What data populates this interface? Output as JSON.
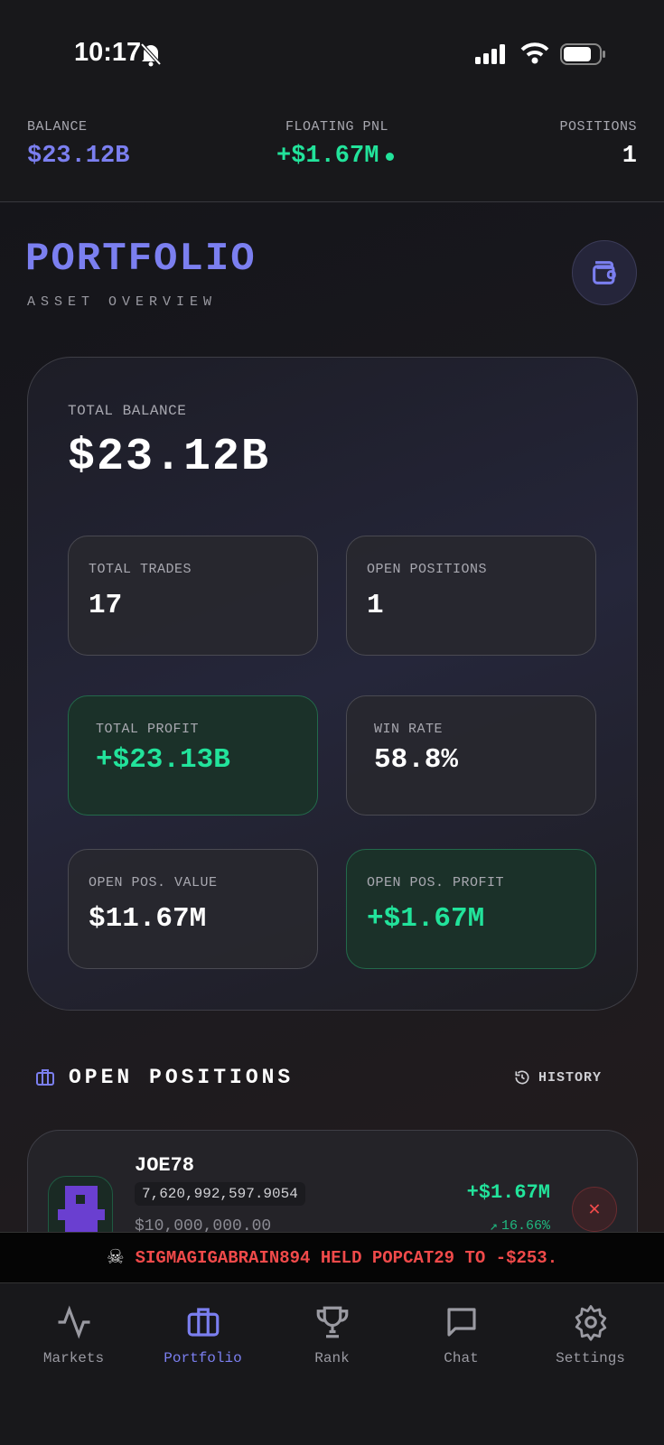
{
  "status_bar": {
    "time": "10:17"
  },
  "topbar": {
    "balance_label": "BALANCE",
    "balance": "$23.12B",
    "pnl_label": "FLOATING PNL",
    "pnl": "+$1.67M",
    "positions_label": "POSITIONS",
    "positions": "1"
  },
  "header": {
    "title": "PORTFOLIO",
    "subtitle": "ASSET OVERVIEW"
  },
  "overview": {
    "total_balance_label": "TOTAL BALANCE",
    "total_balance": "$23.12B",
    "tiles": [
      {
        "label": "TOTAL TRADES",
        "value": "17"
      },
      {
        "label": "OPEN POSITIONS",
        "value": "1"
      },
      {
        "label": "TOTAL PROFIT",
        "value": "+$23.13B"
      },
      {
        "label": "WIN RATE",
        "value": "58.8%"
      },
      {
        "label": "OPEN POS. VALUE",
        "value": "$11.67M"
      },
      {
        "label": "OPEN POS. PROFIT",
        "value": "+$1.67M"
      }
    ]
  },
  "open_positions": {
    "title": "OPEN POSITIONS",
    "history_label": "HISTORY",
    "items": [
      {
        "name": "JOE78",
        "amount": "7,620,992,597.9054",
        "value": "$10,000,000.00",
        "profit": "+$1.67M",
        "change": "16.66%"
      }
    ]
  },
  "ticker": {
    "text": "SIGMAGIGABRAIN894 HELD POPCAT29 TO -$253."
  },
  "nav": {
    "items": [
      "Markets",
      "Portfolio",
      "Rank",
      "Chat",
      "Settings"
    ],
    "active": "Portfolio"
  },
  "colors": {
    "accent": "#7b7ff0",
    "profit": "#22e39b",
    "loss": "#f04a4a"
  }
}
